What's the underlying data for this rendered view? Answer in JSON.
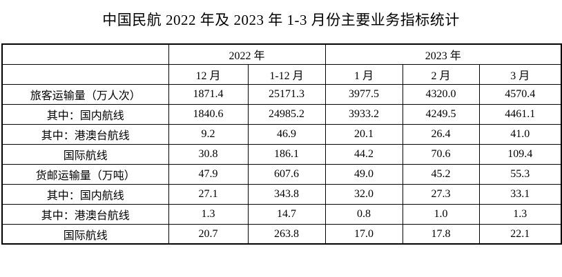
{
  "title": "中国民航 2022 年及 2023 年 1-3 月份主要业务指标统计",
  "colors": {
    "background": "#ffffff",
    "border": "#000000",
    "text": "#000000"
  },
  "table": {
    "year_headers": [
      {
        "label": "",
        "colspan": 1
      },
      {
        "label": "2022 年",
        "colspan": 2
      },
      {
        "label": "2023 年",
        "colspan": 3
      }
    ],
    "month_headers": [
      "",
      "12 月",
      "1-12 月",
      "1 月",
      "2 月",
      "3 月"
    ],
    "rows": [
      {
        "label": "旅客运输量（万人次）",
        "values": [
          "1871.4",
          "25171.3",
          "3977.5",
          "4320.0",
          "4570.4"
        ]
      },
      {
        "label": "其中：国内航线",
        "values": [
          "1840.6",
          "24985.2",
          "3933.2",
          "4249.5",
          "4461.1"
        ]
      },
      {
        "label": "其中：港澳台航线",
        "values": [
          "9.2",
          "46.9",
          "20.1",
          "26.4",
          "41.0"
        ]
      },
      {
        "label": "国际航线",
        "values": [
          "30.8",
          "186.1",
          "44.2",
          "70.6",
          "109.4"
        ]
      },
      {
        "label": "货邮运输量（万吨）",
        "values": [
          "47.9",
          "607.6",
          "49.0",
          "45.2",
          "55.3"
        ]
      },
      {
        "label": "其中：国内航线",
        "values": [
          "27.1",
          "343.8",
          "32.0",
          "27.3",
          "33.1"
        ]
      },
      {
        "label": "其中：港澳台航线",
        "values": [
          "1.3",
          "14.7",
          "0.8",
          "1.0",
          "1.3"
        ]
      },
      {
        "label": "国际航线",
        "values": [
          "20.7",
          "263.8",
          "17.0",
          "17.8",
          "22.1"
        ]
      }
    ]
  }
}
